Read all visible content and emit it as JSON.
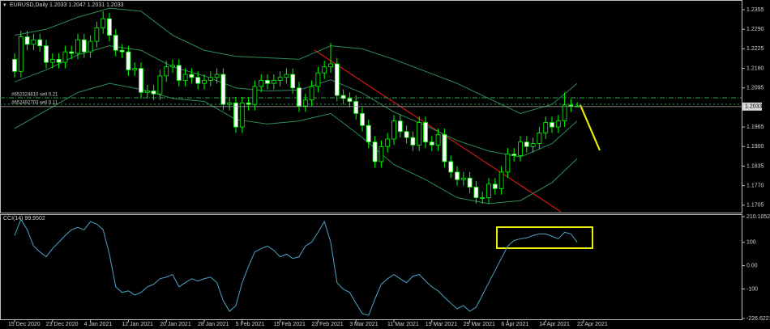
{
  "chart_data": {
    "type": "candlestick",
    "title": "EURUSD,Daily  1.2033 1.2047 1.2031 1.2033",
    "xlabels": [
      "15 Dec 2020",
      "23 Dec 2020",
      "4 Jan 2021",
      "12 Jan 2021",
      "20 Jan 2021",
      "28 Jan 2021",
      "5 Feb 2021",
      "15 Feb 2021",
      "23 Feb 2021",
      "3 Mar 2021",
      "11 Mar 2021",
      "19 Mar 2021",
      "29 Mar 2021",
      "6 Apr 2021",
      "14 Apr 2021",
      "22 Apr 2021"
    ],
    "open": [
      1.219,
      1.215,
      1.2265,
      1.224,
      1.2255,
      1.2235,
      1.218,
      1.219,
      1.218,
      1.2215,
      1.221,
      1.2255,
      1.2215,
      1.225,
      1.2295,
      1.2325,
      1.227,
      1.222,
      1.2215,
      1.2155,
      1.216,
      1.208,
      1.2085,
      1.2075,
      1.2135,
      1.2165,
      1.217,
      1.212,
      1.214,
      1.213,
      1.211,
      1.212,
      1.213,
      1.214,
      1.204,
      1.2045,
      1.1965,
      1.2045,
      1.204,
      1.21,
      1.212,
      1.211,
      1.212,
      1.213,
      1.214,
      1.2095,
      1.2035,
      1.2055,
      1.21,
      1.2145,
      1.2165,
      1.2175,
      1.207,
      1.206,
      1.205,
      1.201,
      1.197,
      1.1915,
      1.185,
      1.19,
      1.1925,
      1.1985,
      1.195,
      1.193,
      1.1905,
      1.198,
      1.1915,
      1.1905,
      1.194,
      1.185,
      1.1815,
      1.179,
      1.1795,
      1.1765,
      1.173,
      1.173,
      1.1775,
      1.176,
      1.1815,
      1.1875,
      1.187,
      1.1915,
      1.19,
      1.191,
      1.1945,
      1.198,
      1.1965,
      1.1985,
      1.2038,
      1.2035
    ],
    "high": [
      1.221,
      1.2285,
      1.2285,
      1.2275,
      1.2275,
      1.2255,
      1.221,
      1.221,
      1.2235,
      1.2235,
      1.2275,
      1.2275,
      1.227,
      1.2315,
      1.235,
      1.2345,
      1.229,
      1.224,
      1.2235,
      1.218,
      1.218,
      1.2105,
      1.2105,
      1.2155,
      1.2185,
      1.219,
      1.219,
      1.216,
      1.216,
      1.215,
      1.214,
      1.215,
      1.216,
      1.216,
      1.2065,
      1.2065,
      1.2065,
      1.2065,
      1.212,
      1.214,
      1.214,
      1.214,
      1.215,
      1.216,
      1.216,
      1.2115,
      1.2075,
      1.212,
      1.2165,
      1.2185,
      1.2245,
      1.2195,
      1.209,
      1.208,
      1.207,
      1.203,
      1.199,
      1.1935,
      1.192,
      1.1945,
      1.2005,
      1.2005,
      1.197,
      1.195,
      1.2,
      1.2,
      1.1935,
      1.196,
      1.196,
      1.187,
      1.1835,
      1.1815,
      1.1815,
      1.1785,
      1.175,
      1.1795,
      1.1795,
      1.1835,
      1.1895,
      1.1895,
      1.1935,
      1.1935,
      1.193,
      1.1965,
      1.2,
      1.2,
      1.2005,
      1.208,
      1.2058,
      1.2047
    ],
    "low": [
      1.213,
      1.213,
      1.222,
      1.222,
      1.2215,
      1.216,
      1.216,
      1.216,
      1.216,
      1.219,
      1.219,
      1.2195,
      1.2195,
      1.223,
      1.2275,
      1.225,
      1.22,
      1.2195,
      1.2135,
      1.2135,
      1.206,
      1.206,
      1.2055,
      1.2055,
      1.2115,
      1.2145,
      1.21,
      1.21,
      1.211,
      1.209,
      1.209,
      1.21,
      1.211,
      1.202,
      1.202,
      1.1945,
      1.1945,
      1.202,
      1.202,
      1.208,
      1.209,
      1.209,
      1.21,
      1.211,
      1.2075,
      1.2015,
      1.2015,
      1.2035,
      1.208,
      1.2125,
      1.2145,
      1.205,
      1.204,
      1.203,
      1.199,
      1.195,
      1.1895,
      1.183,
      1.183,
      1.188,
      1.1905,
      1.193,
      1.191,
      1.1885,
      1.1885,
      1.1895,
      1.1885,
      1.1885,
      1.183,
      1.1795,
      1.177,
      1.177,
      1.1745,
      1.171,
      1.171,
      1.171,
      1.174,
      1.174,
      1.1795,
      1.185,
      1.185,
      1.188,
      1.188,
      1.189,
      1.1925,
      1.1945,
      1.1945,
      1.1965,
      1.2015,
      1.2031
    ],
    "close": [
      1.215,
      1.2265,
      1.224,
      1.2255,
      1.2235,
      1.218,
      1.219,
      1.218,
      1.2215,
      1.221,
      1.2255,
      1.2215,
      1.225,
      1.2295,
      1.2325,
      1.227,
      1.222,
      1.2215,
      1.2155,
      1.216,
      1.208,
      1.2085,
      1.2075,
      1.2135,
      1.2165,
      1.217,
      1.212,
      1.214,
      1.213,
      1.211,
      1.212,
      1.213,
      1.214,
      1.204,
      1.2045,
      1.1965,
      1.2045,
      1.204,
      1.21,
      1.212,
      1.211,
      1.212,
      1.213,
      1.214,
      1.2095,
      1.2035,
      1.2055,
      1.21,
      1.2145,
      1.2165,
      1.2175,
      1.207,
      1.206,
      1.205,
      1.201,
      1.197,
      1.1915,
      1.185,
      1.19,
      1.1925,
      1.1985,
      1.195,
      1.193,
      1.1905,
      1.198,
      1.1915,
      1.1905,
      1.194,
      1.185,
      1.1815,
      1.179,
      1.1795,
      1.1765,
      1.173,
      1.173,
      1.1775,
      1.176,
      1.1815,
      1.1875,
      1.187,
      1.1915,
      1.19,
      1.191,
      1.1945,
      1.198,
      1.1965,
      1.1985,
      1.2038,
      1.2035,
      1.2033
    ],
    "up_color": "#000000",
    "down_color": "#ffffff",
    "wick_color": "#00ff00",
    "bands": {
      "color": "#2e8b57",
      "x": [
        0,
        5,
        10,
        15,
        20,
        25,
        30,
        35,
        40,
        45,
        50,
        55,
        60,
        65,
        70,
        75,
        80,
        85,
        89
      ],
      "upper": [
        1.227,
        1.229,
        1.233,
        1.236,
        1.235,
        1.227,
        1.222,
        1.22,
        1.2195,
        1.219,
        1.2235,
        1.2225,
        1.219,
        1.215,
        1.211,
        1.206,
        1.201,
        1.204,
        1.211
      ],
      "middle": [
        1.2115,
        1.2155,
        1.2205,
        1.2235,
        1.222,
        1.2165,
        1.2135,
        1.2095,
        1.2085,
        1.2088,
        1.2122,
        1.2078,
        1.2015,
        1.197,
        1.192,
        1.1885,
        1.1865,
        1.191,
        1.1985
      ],
      "lower": [
        1.196,
        1.202,
        1.208,
        1.211,
        1.209,
        1.206,
        1.205,
        1.199,
        1.1975,
        1.1985,
        1.201,
        1.193,
        1.184,
        1.179,
        1.173,
        1.171,
        1.172,
        1.178,
        1.186
      ]
    },
    "ylim": [
      1.1683,
      1.2382
    ],
    "yticks": [
      1.2355,
      {
        "value": 1.229,
        "label": "1.2290"
      },
      1.2225,
      {
        "value": 1.216,
        "label": "1.2160"
      },
      1.2095,
      1.1965,
      {
        "value": 1.19,
        "label": "1.1900"
      },
      1.1835,
      {
        "value": 1.177,
        "label": "1.1770"
      },
      1.1705
    ],
    "orders": [
      "#652324810 sell 0.21",
      "#652492703 sell 0.11"
    ],
    "cci": {
      "title": "CCI(14) 99.9502",
      "color": "#4fa3c7",
      "values": [
        129,
        199,
        154,
        84,
        59,
        38,
        73,
        101,
        129,
        154,
        164,
        154,
        189,
        178,
        154,
        49,
        -91,
        -115,
        -108,
        -126,
        -115,
        -91,
        -80,
        -56,
        -49,
        -38,
        -91,
        -73,
        -56,
        -66,
        -56,
        -49,
        -73,
        -150,
        -196,
        -171,
        -73,
        -3,
        59,
        73,
        84,
        66,
        38,
        49,
        31,
        38,
        84,
        101,
        143,
        189,
        101,
        -73,
        -101,
        -115,
        -161,
        -206,
        -213,
        -143,
        -80,
        -56,
        -38,
        -56,
        -73,
        -45,
        -38,
        -66,
        -91,
        -108,
        -136,
        -161,
        -185,
        -171,
        -196,
        -178,
        -126,
        -73,
        -21,
        31,
        84,
        108,
        115,
        119,
        129,
        136,
        136,
        126,
        115,
        143,
        136,
        99.9502
      ],
      "ylim": [
        -226.6221,
        210.1052
      ],
      "yticks": [
        210.1052,
        100,
        {
          "value": 0,
          "label": "0.00"
        },
        -100,
        -226.6221
      ]
    }
  }
}
